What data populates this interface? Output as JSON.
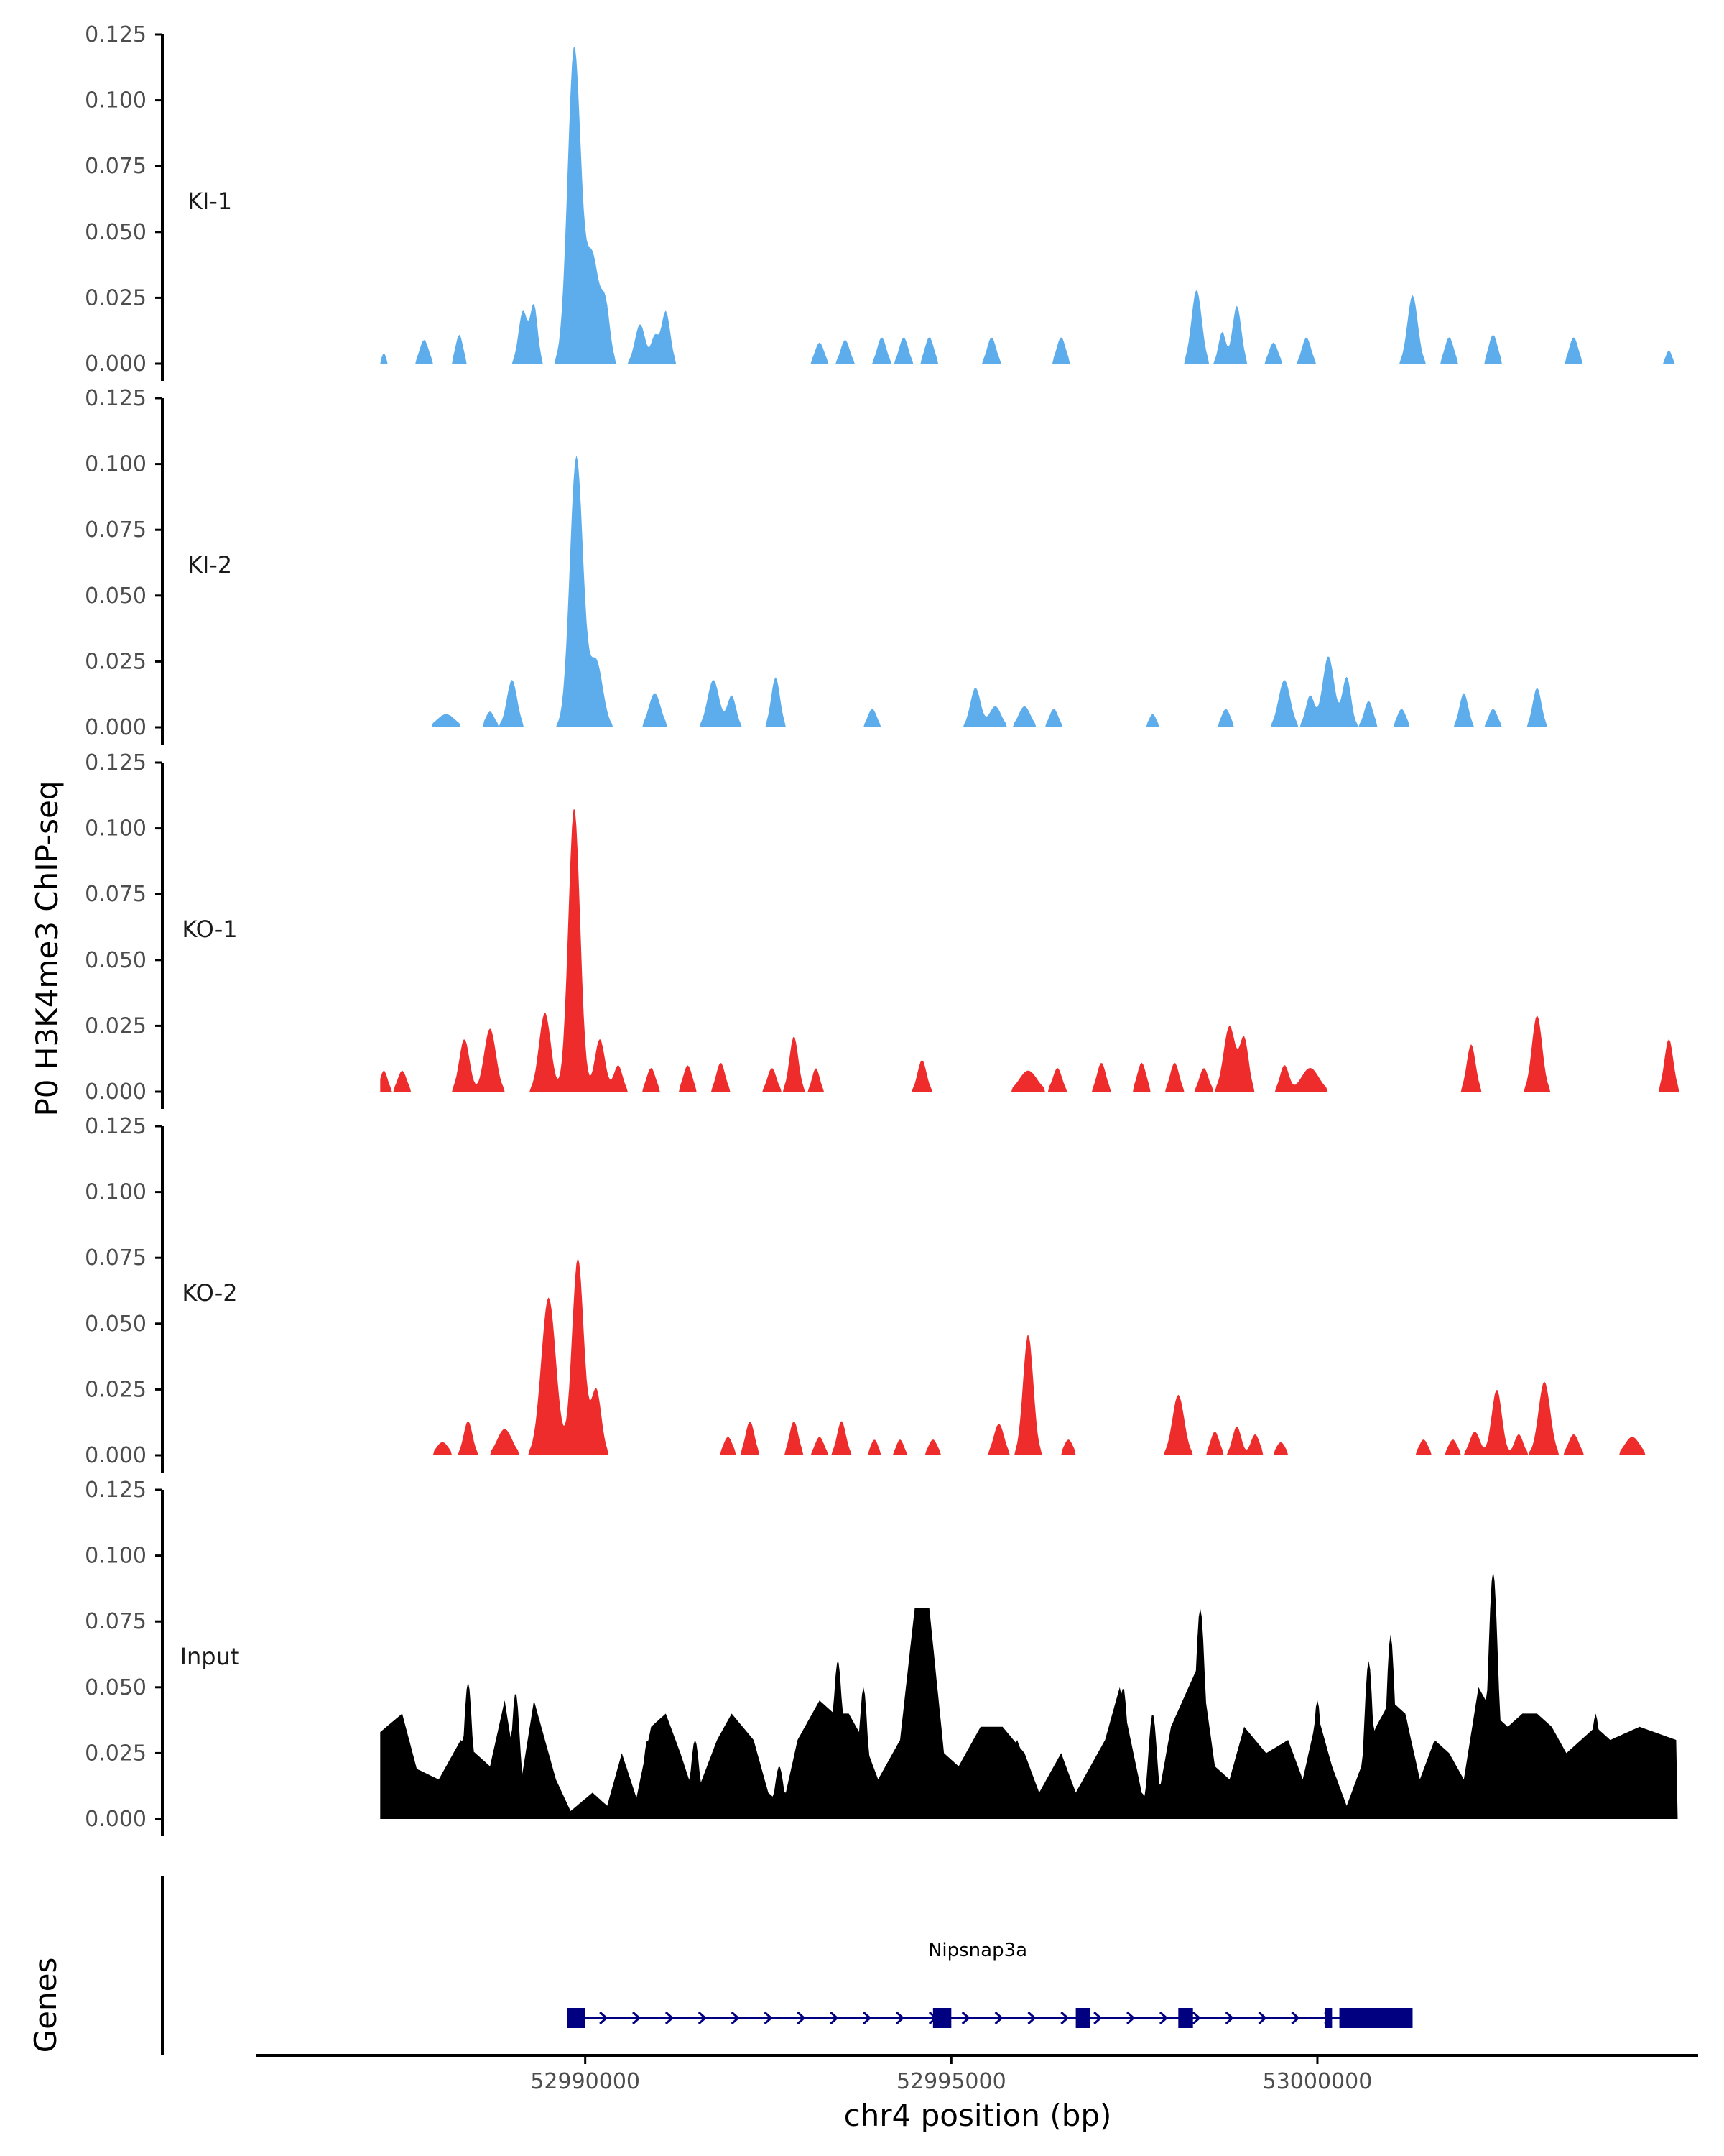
{
  "chart_data": {
    "type": "area",
    "ylabel": "P0 H3K4me3 ChIP-seq",
    "xlabel": "chr4 position (bp)",
    "genes_label": "Genes",
    "xlim": [
      52985500,
      53005200
    ],
    "ylim": [
      0,
      0.125
    ],
    "y_ticks": [
      "0.000",
      "0.025",
      "0.050",
      "0.075",
      "0.100",
      "0.125"
    ],
    "x_ticks": [
      {
        "value": 52990000,
        "label": "52990000"
      },
      {
        "value": 52995000,
        "label": "52995000"
      },
      {
        "value": 53000000,
        "label": "53000000"
      }
    ],
    "tracks": [
      {
        "name": "KI-1",
        "color": "#5DADEC",
        "range": [
          52987200,
          53004950
        ],
        "peaks": [
          [
            52987250,
            0.004,
            30
          ],
          [
            52987800,
            0.009,
            60
          ],
          [
            52988280,
            0.011,
            50
          ],
          [
            52989150,
            0.02,
            60
          ],
          [
            52989300,
            0.022,
            50
          ],
          [
            52989850,
            0.12,
            90
          ],
          [
            52990100,
            0.04,
            90
          ],
          [
            52990280,
            0.02,
            60
          ],
          [
            52990750,
            0.015,
            70
          ],
          [
            52990950,
            0.01,
            50
          ],
          [
            52991100,
            0.02,
            60
          ],
          [
            52993200,
            0.008,
            60
          ],
          [
            52993550,
            0.009,
            60
          ],
          [
            52994050,
            0.01,
            60
          ],
          [
            52994350,
            0.01,
            60
          ],
          [
            52994700,
            0.01,
            60
          ],
          [
            52995550,
            0.01,
            60
          ],
          [
            52996500,
            0.01,
            60
          ],
          [
            52998350,
            0.028,
            70
          ],
          [
            52998700,
            0.012,
            50
          ],
          [
            52998900,
            0.022,
            60
          ],
          [
            52999400,
            0.008,
            60
          ],
          [
            52999850,
            0.01,
            60
          ],
          [
            53001300,
            0.026,
            70
          ],
          [
            53001800,
            0.01,
            60
          ],
          [
            53002400,
            0.011,
            60
          ],
          [
            53003500,
            0.01,
            60
          ],
          [
            53004800,
            0.005,
            40
          ]
        ]
      },
      {
        "name": "KI-2",
        "color": "#5DADEC",
        "range": [
          52987800,
          53004000
        ],
        "peaks": [
          [
            52988100,
            0.005,
            120
          ],
          [
            52988700,
            0.006,
            60
          ],
          [
            52989000,
            0.018,
            70
          ],
          [
            52989880,
            0.103,
            90
          ],
          [
            52990150,
            0.025,
            90
          ],
          [
            52990950,
            0.013,
            80
          ],
          [
            52991750,
            0.018,
            80
          ],
          [
            52992000,
            0.012,
            60
          ],
          [
            52992600,
            0.019,
            60
          ],
          [
            52993920,
            0.007,
            60
          ],
          [
            52995330,
            0.015,
            70
          ],
          [
            52995600,
            0.008,
            80
          ],
          [
            52996000,
            0.008,
            80
          ],
          [
            52996400,
            0.007,
            60
          ],
          [
            52997750,
            0.005,
            50
          ],
          [
            52998750,
            0.007,
            60
          ],
          [
            52999550,
            0.018,
            80
          ],
          [
            52999900,
            0.012,
            60
          ],
          [
            53000150,
            0.027,
            80
          ],
          [
            53000400,
            0.019,
            60
          ],
          [
            53000700,
            0.01,
            60
          ],
          [
            53001150,
            0.007,
            60
          ],
          [
            53002000,
            0.013,
            60
          ],
          [
            53002400,
            0.007,
            60
          ],
          [
            53003000,
            0.015,
            60
          ]
        ]
      },
      {
        "name": "KO-1",
        "color": "#EE2C2C",
        "range": [
          52987200,
          53004950
        ],
        "peaks": [
          [
            52987250,
            0.008,
            50
          ],
          [
            52987500,
            0.008,
            60
          ],
          [
            52988350,
            0.02,
            70
          ],
          [
            52988700,
            0.024,
            80
          ],
          [
            52989450,
            0.03,
            80
          ],
          [
            52989850,
            0.108,
            80
          ],
          [
            52990200,
            0.02,
            70
          ],
          [
            52990450,
            0.01,
            60
          ],
          [
            52990900,
            0.009,
            60
          ],
          [
            52991400,
            0.01,
            60
          ],
          [
            52991850,
            0.011,
            60
          ],
          [
            52992550,
            0.009,
            60
          ],
          [
            52992850,
            0.021,
            60
          ],
          [
            52993150,
            0.009,
            50
          ],
          [
            52994600,
            0.012,
            60
          ],
          [
            52996050,
            0.008,
            120
          ],
          [
            52996450,
            0.009,
            60
          ],
          [
            52997050,
            0.011,
            60
          ],
          [
            52997600,
            0.011,
            60
          ],
          [
            52998050,
            0.011,
            60
          ],
          [
            52998450,
            0.009,
            60
          ],
          [
            52998800,
            0.025,
            80
          ],
          [
            52999000,
            0.02,
            60
          ],
          [
            52999550,
            0.01,
            60
          ],
          [
            52999900,
            0.009,
            120
          ],
          [
            53002100,
            0.018,
            60
          ],
          [
            53003000,
            0.029,
            70
          ],
          [
            53004800,
            0.02,
            60
          ]
        ]
      },
      {
        "name": "KO-2",
        "color": "#EE2C2C",
        "range": [
          52987800,
          53004950
        ],
        "peaks": [
          [
            52988050,
            0.005,
            80
          ],
          [
            52988400,
            0.013,
            60
          ],
          [
            52988900,
            0.01,
            100
          ],
          [
            52989500,
            0.06,
            100
          ],
          [
            52989900,
            0.075,
            80
          ],
          [
            52990150,
            0.025,
            70
          ],
          [
            52991950,
            0.007,
            60
          ],
          [
            52992250,
            0.013,
            60
          ],
          [
            52992850,
            0.013,
            60
          ],
          [
            52993200,
            0.007,
            60
          ],
          [
            52993500,
            0.013,
            60
          ],
          [
            52993950,
            0.006,
            50
          ],
          [
            52994300,
            0.006,
            50
          ],
          [
            52994750,
            0.006,
            60
          ],
          [
            52995650,
            0.012,
            70
          ],
          [
            52996050,
            0.046,
            70
          ],
          [
            52996600,
            0.006,
            60
          ],
          [
            52998100,
            0.023,
            80
          ],
          [
            52998600,
            0.009,
            60
          ],
          [
            52998900,
            0.011,
            60
          ],
          [
            52999150,
            0.008,
            60
          ],
          [
            52999500,
            0.005,
            60
          ],
          [
            53001450,
            0.006,
            60
          ],
          [
            53001850,
            0.006,
            60
          ],
          [
            53002150,
            0.009,
            70
          ],
          [
            53002450,
            0.025,
            70
          ],
          [
            53002750,
            0.008,
            60
          ],
          [
            53003100,
            0.028,
            80
          ],
          [
            53003500,
            0.008,
            70
          ],
          [
            53004300,
            0.007,
            100
          ]
        ]
      },
      {
        "name": "Input",
        "color": "#000000",
        "range": [
          52987200,
          53004950
        ],
        "baseline": [
          [
            52987200,
            0.033
          ],
          [
            52987500,
            0.04
          ],
          [
            52987700,
            0.019
          ],
          [
            52988000,
            0.015
          ],
          [
            52988300,
            0.03
          ],
          [
            52988700,
            0.02
          ],
          [
            52988900,
            0.045
          ],
          [
            52989100,
            0.01
          ],
          [
            52989300,
            0.045
          ],
          [
            52989600,
            0.015
          ],
          [
            52989800,
            0.003
          ],
          [
            52990100,
            0.01
          ],
          [
            52990300,
            0.005
          ],
          [
            52990500,
            0.025
          ],
          [
            52990700,
            0.008
          ],
          [
            52990900,
            0.035
          ],
          [
            52991100,
            0.04
          ],
          [
            52991300,
            0.025
          ],
          [
            52991500,
            0.008
          ],
          [
            52991800,
            0.03
          ],
          [
            52992000,
            0.04
          ],
          [
            52992300,
            0.03
          ],
          [
            52992500,
            0.01
          ],
          [
            52992700,
            0.005
          ],
          [
            52992900,
            0.03
          ],
          [
            52993200,
            0.045
          ],
          [
            52993400,
            0.04
          ],
          [
            52993600,
            0.04
          ],
          [
            52993800,
            0.03
          ],
          [
            52994000,
            0.015
          ],
          [
            52994300,
            0.03
          ],
          [
            52994500,
            0.08
          ],
          [
            52994700,
            0.08
          ],
          [
            52994900,
            0.025
          ],
          [
            52995100,
            0.02
          ],
          [
            52995400,
            0.035
          ],
          [
            52995700,
            0.035
          ],
          [
            52996000,
            0.025
          ],
          [
            52996200,
            0.01
          ],
          [
            52996500,
            0.025
          ],
          [
            52996700,
            0.01
          ],
          [
            52996900,
            0.02
          ],
          [
            52997100,
            0.03
          ],
          [
            52997300,
            0.05
          ],
          [
            52997600,
            0.01
          ],
          [
            52997800,
            0.004
          ],
          [
            52998000,
            0.035
          ],
          [
            52998400,
            0.06
          ],
          [
            52998600,
            0.02
          ],
          [
            52998800,
            0.015
          ],
          [
            52999000,
            0.035
          ],
          [
            52999300,
            0.025
          ],
          [
            52999600,
            0.03
          ],
          [
            52999800,
            0.015
          ],
          [
            53000000,
            0.04
          ],
          [
            53000200,
            0.02
          ],
          [
            53000400,
            0.005
          ],
          [
            53000600,
            0.02
          ],
          [
            53000800,
            0.035
          ],
          [
            53001000,
            0.045
          ],
          [
            53001200,
            0.04
          ],
          [
            53001400,
            0.015
          ],
          [
            53001600,
            0.03
          ],
          [
            53001800,
            0.025
          ],
          [
            53002000,
            0.015
          ],
          [
            53002200,
            0.05
          ],
          [
            53002400,
            0.04
          ],
          [
            53002600,
            0.035
          ],
          [
            53002800,
            0.04
          ],
          [
            53003000,
            0.04
          ],
          [
            53003200,
            0.035
          ],
          [
            53003400,
            0.025
          ],
          [
            53003600,
            0.03
          ],
          [
            53003800,
            0.035
          ],
          [
            53004000,
            0.03
          ],
          [
            53004400,
            0.035
          ],
          [
            53004900,
            0.03
          ]
        ],
        "spikes": [
          [
            52988400,
            0.052,
            60
          ],
          [
            52989050,
            0.048,
            60
          ],
          [
            52990850,
            0.03,
            60
          ],
          [
            52991500,
            0.03,
            60
          ],
          [
            52992650,
            0.02,
            60
          ],
          [
            52993450,
            0.06,
            70
          ],
          [
            52993800,
            0.05,
            60
          ],
          [
            52994500,
            0.05,
            60
          ],
          [
            52994550,
            0.08,
            80
          ],
          [
            52995350,
            0.03,
            60
          ],
          [
            52995900,
            0.03,
            60
          ],
          [
            52997350,
            0.05,
            60
          ],
          [
            52997750,
            0.04,
            60
          ],
          [
            52998400,
            0.08,
            70
          ],
          [
            53000000,
            0.045,
            60
          ],
          [
            53000700,
            0.06,
            60
          ],
          [
            53001000,
            0.07,
            60
          ],
          [
            53001200,
            0.04,
            60
          ],
          [
            53002400,
            0.094,
            70
          ],
          [
            53003100,
            0.035,
            60
          ],
          [
            53003800,
            0.04,
            60
          ]
        ]
      }
    ],
    "gene": {
      "name": "Nipsnap3a",
      "color": "#000080",
      "start": 52989850,
      "end": 53001300,
      "strand": "+",
      "exons": [
        [
          52989750,
          52990000
        ],
        [
          52994750,
          52995000
        ],
        [
          52996700,
          52996900
        ],
        [
          52998100,
          52998300
        ],
        [
          53000100,
          53000200
        ],
        [
          53000300,
          53001300
        ]
      ]
    }
  }
}
